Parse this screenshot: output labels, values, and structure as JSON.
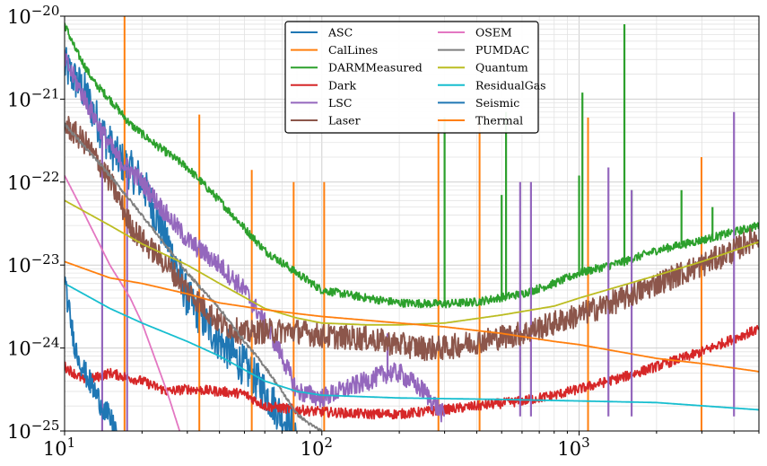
{
  "chart_data": {
    "type": "line",
    "title": "",
    "xlabel": "",
    "ylabel": "",
    "xscale": "log",
    "yscale": "log",
    "xlim": [
      10,
      5000
    ],
    "ylim": [
      1e-25,
      1e-20
    ],
    "grid": true,
    "legend_placement": "top-center",
    "legend_columns": 2,
    "x_tick_labels": [
      {
        "value": 10,
        "base": "10",
        "exp": "1"
      },
      {
        "value": 100,
        "base": "10",
        "exp": "2"
      },
      {
        "value": 1000,
        "base": "10",
        "exp": "3"
      }
    ],
    "y_tick_labels": [
      {
        "value": 1e-20,
        "base": "10",
        "exp": "−20"
      },
      {
        "value": 1e-21,
        "base": "10",
        "exp": "−21"
      },
      {
        "value": 1e-22,
        "base": "10",
        "exp": "−22"
      },
      {
        "value": 1e-23,
        "base": "10",
        "exp": "−23"
      },
      {
        "value": 1e-24,
        "base": "10",
        "exp": "−24"
      },
      {
        "value": 1e-25,
        "base": "10",
        "exp": "−25"
      }
    ],
    "series": [
      {
        "name": "ASC",
        "color": "#1f77b4",
        "noise": 0.25,
        "x": [
          10,
          12,
          14,
          16,
          20,
          25,
          30,
          40,
          50,
          60,
          70,
          80
        ],
        "y": [
          2.5e-21,
          1.2e-21,
          4e-22,
          2e-22,
          1e-22,
          2e-23,
          4e-24,
          1.2e-24,
          6e-25,
          3e-25,
          1.5e-25,
          1e-25
        ]
      },
      {
        "name": "CalLines",
        "color": "#ff7f0e",
        "noise": 0,
        "lines": [
          {
            "x": 17.1,
            "y": 1e-20
          },
          {
            "x": 33.4,
            "y": 6.5e-22
          },
          {
            "x": 53.4,
            "y": 1.4e-22
          },
          {
            "x": 77.7,
            "y": 1e-22
          },
          {
            "x": 102.1,
            "y": 1e-22
          },
          {
            "x": 283.9,
            "y": 6e-22
          },
          {
            "x": 410.3,
            "y": 6e-22
          },
          {
            "x": 1083.3,
            "y": 6e-22
          },
          {
            "x": 2990,
            "y": 2e-22
          }
        ]
      },
      {
        "name": "DARMMeasured",
        "color": "#2ca02c",
        "noise": 0.05,
        "x": [
          10,
          11,
          13,
          15,
          18,
          22,
          30,
          40,
          60,
          80,
          100,
          150,
          200,
          300,
          400,
          600,
          800,
          1000,
          1500,
          2000,
          3000,
          4000,
          5000
        ],
        "y": [
          8e-21,
          4e-21,
          1.6e-21,
          1e-21,
          5e-22,
          3e-22,
          1.5e-22,
          6e-23,
          1.5e-23,
          8e-24,
          5e-24,
          4e-24,
          3.5e-24,
          3.4e-24,
          3.6e-24,
          4.5e-24,
          6e-24,
          8e-24,
          1.1e-23,
          1.5e-23,
          2e-23,
          2.5e-23,
          3e-23
        ],
        "peaks": [
          {
            "x": 300,
            "y": 6e-22
          },
          {
            "x": 500,
            "y": 7e-23
          },
          {
            "x": 520,
            "y": 7e-22
          },
          {
            "x": 1000,
            "y": 1.2e-22
          },
          {
            "x": 1030,
            "y": 1.2e-21
          },
          {
            "x": 1500,
            "y": 8e-21
          },
          {
            "x": 1600,
            "y": 8e-23
          },
          {
            "x": 2500,
            "y": 8e-23
          },
          {
            "x": 3300,
            "y": 5e-23
          }
        ]
      },
      {
        "name": "Dark",
        "color": "#d62728",
        "noise": 0.06,
        "x": [
          10,
          12,
          15,
          20,
          25,
          30,
          40,
          50,
          60,
          80,
          100,
          150,
          200,
          300,
          400,
          600,
          800,
          1000,
          1500,
          2000,
          3000,
          4000,
          5000
        ],
        "y": [
          6e-25,
          4e-25,
          5e-25,
          4e-25,
          3e-25,
          3.2e-25,
          3e-25,
          2.8e-25,
          2e-25,
          1.8e-25,
          1.7e-25,
          1.6e-25,
          1.6e-25,
          1.8e-25,
          2e-25,
          2.3e-25,
          2.7e-25,
          3.2e-25,
          4.5e-25,
          6e-25,
          9e-25,
          1.3e-24,
          1.7e-24
        ]
      },
      {
        "name": "LSC",
        "color": "#9467bd",
        "noise": 0.12,
        "x": [
          10,
          12,
          14,
          16,
          20,
          25,
          30,
          40,
          50,
          60,
          70,
          80,
          100,
          150,
          180,
          200,
          250,
          300
        ],
        "y": [
          3e-21,
          1e-21,
          4e-22,
          2e-22,
          1e-22,
          4e-23,
          2e-23,
          1e-23,
          5e-24,
          2e-24,
          8e-25,
          3e-25,
          2.5e-25,
          4e-25,
          5e-25,
          5e-25,
          3e-25,
          1.5e-25
        ],
        "peaks": [
          {
            "x": 14,
            "y": 1e-25
          },
          {
            "x": 17.5,
            "y": 1e-25
          },
          {
            "x": 180,
            "y": 1.5e-24
          },
          {
            "x": 590,
            "y": 1e-22
          },
          {
            "x": 650,
            "y": 1e-22
          },
          {
            "x": 1300,
            "y": 1.5e-22
          },
          {
            "x": 1600,
            "y": 8e-23
          },
          {
            "x": 4000,
            "y": 7e-22
          }
        ]
      },
      {
        "name": "Laser",
        "color": "#8c564b",
        "noise": 0.15,
        "x": [
          10,
          12,
          14,
          16,
          18,
          20,
          25,
          30,
          40,
          50,
          60,
          80,
          100,
          150,
          200,
          250,
          300,
          400,
          600,
          800,
          1000,
          1500,
          2000,
          3000,
          4000,
          5000
        ],
        "y": [
          5e-22,
          3e-22,
          1.5e-22,
          7e-23,
          3e-23,
          2e-23,
          1e-23,
          5e-24,
          2e-24,
          1.5e-24,
          1.6e-24,
          1.6e-24,
          1.4e-24,
          1.3e-24,
          1.1e-24,
          1e-24,
          1e-24,
          1.2e-24,
          1.5e-24,
          2e-24,
          2.5e-24,
          4e-24,
          6e-24,
          1e-23,
          1.5e-23,
          2.3e-23
        ]
      },
      {
        "name": "OSEM",
        "color": "#e377c2",
        "noise": 0,
        "x": [
          10,
          12,
          15,
          18,
          20,
          25,
          28
        ],
        "y": [
          1.2e-22,
          4e-23,
          1e-23,
          4e-24,
          2e-24,
          3e-25,
          1e-25
        ]
      },
      {
        "name": "PUMDAC",
        "color": "#7f7f7f",
        "noise": 0.02,
        "x": [
          10,
          15,
          20,
          30,
          40,
          50,
          60,
          70,
          80,
          90,
          100
        ],
        "y": [
          5e-22,
          1.2e-22,
          4e-23,
          8e-24,
          3e-24,
          1.2e-24,
          6e-25,
          3e-25,
          1.6e-25,
          1.2e-25,
          1e-25
        ]
      },
      {
        "name": "Quantum",
        "color": "#bcbd22",
        "noise": 0,
        "x": [
          10,
          15,
          20,
          30,
          40,
          60,
          80,
          100,
          150,
          200,
          300,
          500,
          800,
          1000,
          2000,
          3000,
          5000
        ],
        "y": [
          6e-23,
          3e-23,
          1.8e-23,
          1e-23,
          6e-24,
          3e-24,
          2.3e-24,
          2e-24,
          1.9e-24,
          1.9e-24,
          2e-24,
          2.5e-24,
          3.2e-24,
          4e-24,
          7.5e-24,
          1.1e-23,
          1.9e-23
        ]
      },
      {
        "name": "ResidualGas",
        "color": "#17becf",
        "noise": 0,
        "x": [
          10,
          15,
          20,
          30,
          40,
          60,
          80,
          100,
          200,
          500,
          1000,
          2000,
          5000
        ],
        "y": [
          6e-24,
          3e-24,
          2e-24,
          1.2e-24,
          8e-25,
          4e-25,
          3e-25,
          2.7e-25,
          2.5e-25,
          2.4e-25,
          2.3e-25,
          2.2e-25,
          1.8e-25
        ]
      },
      {
        "name": "Seismic",
        "color": "#1f77b4",
        "noise": 0.15,
        "x": [
          10,
          11,
          12,
          14,
          16
        ],
        "y": [
          6e-24,
          1e-24,
          5e-25,
          2e-25,
          1e-25
        ]
      },
      {
        "name": "Thermal",
        "color": "#ff7f0e",
        "noise": 0,
        "x": [
          10,
          15,
          20,
          30,
          40,
          60,
          80,
          100,
          200,
          300,
          500,
          800,
          1000,
          2000,
          3000,
          5000
        ],
        "y": [
          1.1e-23,
          7e-24,
          6e-24,
          4.5e-24,
          3.5e-24,
          2.9e-24,
          2.6e-24,
          2.4e-24,
          2e-24,
          1.8e-24,
          1.5e-24,
          1.2e-24,
          1.1e-24,
          7.5e-25,
          6.5e-25,
          5.2e-25
        ]
      }
    ]
  }
}
